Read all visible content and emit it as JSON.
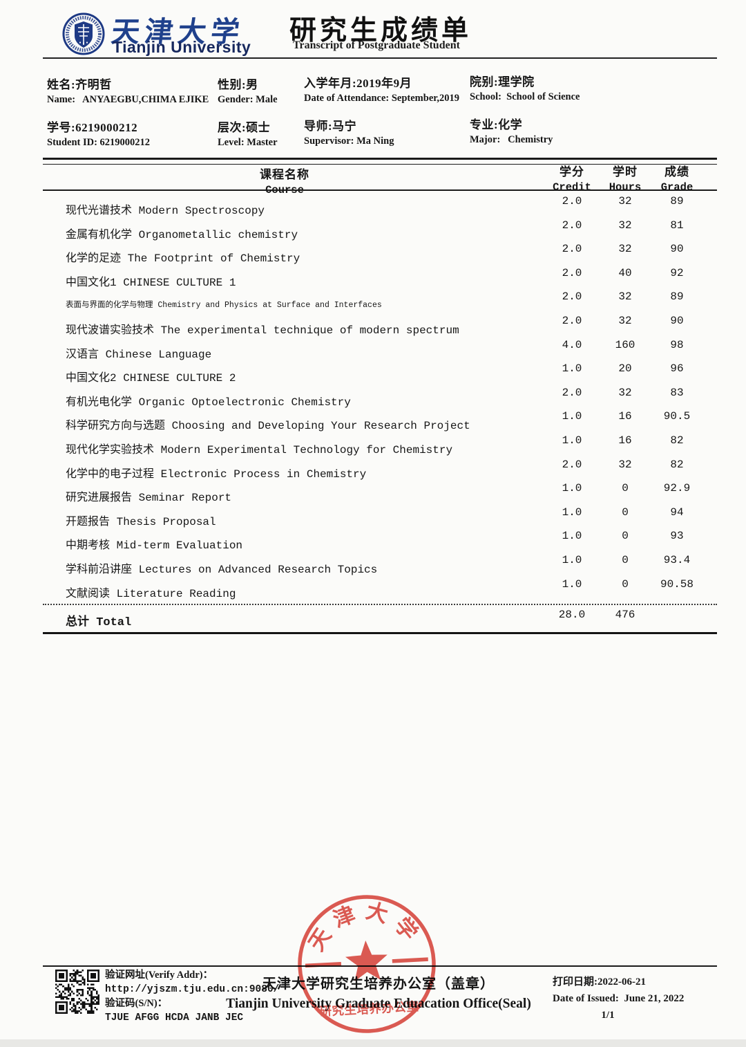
{
  "header": {
    "logo_cn": "天津大学",
    "logo_en": "Tianjin University",
    "title_cn": "研究生成绩单",
    "title_en": "Transcript of Postgraduate Student"
  },
  "student": {
    "name_cn": "姓名:齐明哲",
    "name_en": "Name:   ANYAEGBU,CHIMA EJIKE",
    "gender_cn": "性别:男",
    "gender_en": "Gender: Male",
    "attendance_cn": "入学年月:2019年9月",
    "attendance_en": "Date of Attendance: September,2019",
    "school_cn": "院别:理学院",
    "school_en": "School:  School of Science",
    "id_cn": "学号:6219000212",
    "id_en": "Student ID: 6219000212",
    "level_cn": "层次:硕士",
    "level_en": "Level: Master",
    "supervisor_cn": "导师:马宁",
    "supervisor_en": "Supervisor: Ma Ning",
    "major_cn": "专业:化学",
    "major_en": "Major:   Chemistry"
  },
  "table": {
    "header": {
      "course_cn": "课程名称",
      "course_en": "Course",
      "credit_cn": "学分",
      "credit_en": "Credit",
      "hours_cn": "学时",
      "hours_en": "Hours",
      "grade_cn": "成绩",
      "grade_en": "Grade"
    },
    "courses": [
      {
        "name": "现代光谱技术 Modern Spectroscopy",
        "credit": "2.0",
        "hours": "32",
        "grade": "89"
      },
      {
        "name": "金属有机化学 Organometallic chemistry",
        "credit": "2.0",
        "hours": "32",
        "grade": "81"
      },
      {
        "name": "化学的足迹 The Footprint of Chemistry",
        "credit": "2.0",
        "hours": "32",
        "grade": "90"
      },
      {
        "name": "中国文化1 CHINESE CULTURE 1",
        "credit": "2.0",
        "hours": "40",
        "grade": "92"
      },
      {
        "name": "表面与界面的化学与物理 Chemistry and Physics at Surface and Interfaces",
        "credit": "2.0",
        "hours": "32",
        "grade": "89",
        "small": true
      },
      {
        "name": "现代波谱实验技术 The experimental technique of modern spectrum",
        "credit": "2.0",
        "hours": "32",
        "grade": "90"
      },
      {
        "name": "汉语言 Chinese Language",
        "credit": "4.0",
        "hours": "160",
        "grade": "98"
      },
      {
        "name": "中国文化2 CHINESE CULTURE 2",
        "credit": "1.0",
        "hours": "20",
        "grade": "96"
      },
      {
        "name": "有机光电化学 Organic Optoelectronic Chemistry",
        "credit": "2.0",
        "hours": "32",
        "grade": "83"
      },
      {
        "name": "科学研究方向与选题 Choosing and Developing Your Research Project",
        "credit": "1.0",
        "hours": "16",
        "grade": "90.5"
      },
      {
        "name": "现代化学实验技术 Modern Experimental Technology for Chemistry",
        "credit": "1.0",
        "hours": "16",
        "grade": "82"
      },
      {
        "name": "化学中的电子过程 Electronic Process in Chemistry",
        "credit": "2.0",
        "hours": "32",
        "grade": "82"
      },
      {
        "name": "研究进展报告 Seminar Report",
        "credit": "1.0",
        "hours": "0",
        "grade": "92.9"
      },
      {
        "name": "开题报告 Thesis Proposal",
        "credit": "1.0",
        "hours": "0",
        "grade": "94"
      },
      {
        "name": "中期考核 Mid-term Evaluation",
        "credit": "1.0",
        "hours": "0",
        "grade": "93"
      },
      {
        "name": "学科前沿讲座 Lectures on Advanced Research Topics",
        "credit": "1.0",
        "hours": "0",
        "grade": "93.4"
      },
      {
        "name": "文献阅读 Literature Reading",
        "credit": "1.0",
        "hours": "0",
        "grade": "90.58"
      }
    ],
    "total": {
      "label": "总计 Total",
      "credit": "28.0",
      "hours": "476",
      "grade": ""
    }
  },
  "footer": {
    "verify_addr_label": "验证网址(Verify Addr)：",
    "verify_url": "http://yjszm.tju.edu.cn:9080/",
    "sn_label": "验证码(S/N)：",
    "sn_code": "TJUE AFGG HCDA JANB JEC",
    "office_cn": "天津大学研究生培养办公室（盖章）",
    "office_en": "Tianjin University Graduate Eduacation Office(Seal)",
    "print_date_cn": "打印日期:2022-06-21",
    "date_of_issue_en": "Date of Issued:  June 21, 2022",
    "page_number": "1/1"
  },
  "seal": {
    "arc_text": "天津大学",
    "line_text": "研究生培养办公室",
    "color": "#d6352b"
  },
  "colors": {
    "brand_navy": "#20418c",
    "seal_red": "#d6352b",
    "ink": "#161616"
  }
}
